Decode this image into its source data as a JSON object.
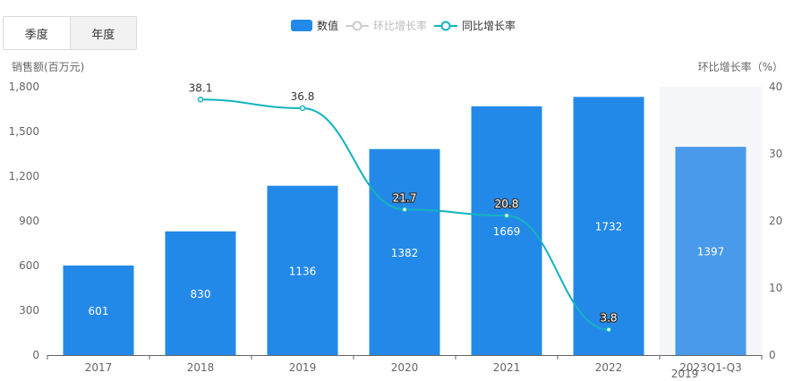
{
  "tabs": [
    {
      "label": "季度",
      "active": false
    },
    {
      "label": "年度",
      "active": true
    }
  ],
  "legend": [
    {
      "label": "数值",
      "kind": "bar",
      "color": "#2389e8",
      "enabled": true
    },
    {
      "label": "环比增长率",
      "kind": "line",
      "color": "#cccccc",
      "enabled": false
    },
    {
      "label": "同比增长率",
      "kind": "line",
      "color": "#14b3c0",
      "enabled": true
    }
  ],
  "chart_data": {
    "type": "bar",
    "categories": [
      "2017",
      "2018",
      "2019",
      "2020",
      "2021",
      "2022",
      "2023Q1-Q3"
    ],
    "series": [
      {
        "name": "数值",
        "type": "bar",
        "axis": "left",
        "values": [
          601,
          830,
          1136,
          1382,
          1669,
          1732,
          1397
        ]
      },
      {
        "name": "同比增长率",
        "type": "line",
        "axis": "right",
        "values": [
          null,
          38.1,
          36.8,
          21.7,
          20.8,
          3.8,
          null
        ]
      }
    ],
    "ylabel": "销售额(百万元)",
    "ylabel_right": "环比增长率（%）",
    "ylim": [
      0,
      1800
    ],
    "yticks": [
      "0",
      "300",
      "600",
      "900",
      "1,200",
      "1,500",
      "1,800"
    ],
    "ylim_right": [
      0,
      40
    ],
    "yticks_right": [
      "0",
      "10",
      "20",
      "30",
      "40"
    ],
    "tooltip_label": "2019",
    "highlighted_category": "2023Q1-Q3",
    "colors": {
      "bar": "#2389e8",
      "bar_highlight": "#4a9aeb",
      "line": "#14b3c0",
      "hover_bg": "#f5f7fb"
    }
  }
}
